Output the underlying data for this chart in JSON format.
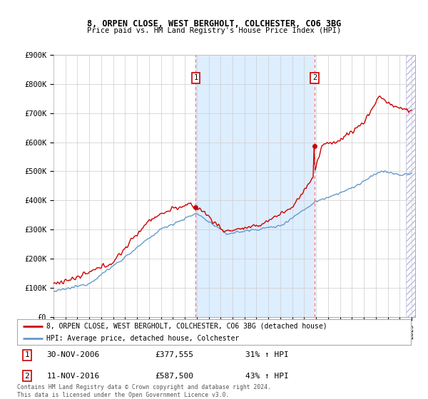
{
  "title1": "8, ORPEN CLOSE, WEST BERGHOLT, COLCHESTER, CO6 3BG",
  "title2": "Price paid vs. HM Land Registry's House Price Index (HPI)",
  "ylabel_ticks": [
    "£0",
    "£100K",
    "£200K",
    "£300K",
    "£400K",
    "£500K",
    "£600K",
    "£700K",
    "£800K",
    "£900K"
  ],
  "ytick_values": [
    0,
    100000,
    200000,
    300000,
    400000,
    500000,
    600000,
    700000,
    800000,
    900000
  ],
  "ylim": [
    0,
    900000
  ],
  "xlim_start": 1995.0,
  "xlim_end": 2025.3,
  "marker1_x": 2006.92,
  "marker1_y": 377555,
  "marker2_x": 2016.87,
  "marker2_y": 587500,
  "marker1_date": "30-NOV-2006",
  "marker1_price": "£377,555",
  "marker1_hpi": "31% ↑ HPI",
  "marker2_date": "11-NOV-2016",
  "marker2_price": "£587,500",
  "marker2_hpi": "43% ↑ HPI",
  "legend_line1": "8, ORPEN CLOSE, WEST BERGHOLT, COLCHESTER, CO6 3BG (detached house)",
  "legend_line2": "HPI: Average price, detached house, Colchester",
  "footer": "Contains HM Land Registry data © Crown copyright and database right 2024.\nThis data is licensed under the Open Government Licence v3.0.",
  "red_color": "#cc0000",
  "blue_color": "#6699cc",
  "highlight_color": "#ddeeff",
  "white_bg": "#ffffff",
  "grid_color": "#cccccc",
  "dashed_color": "#ff6666",
  "hatch_color": "#bbbbdd"
}
